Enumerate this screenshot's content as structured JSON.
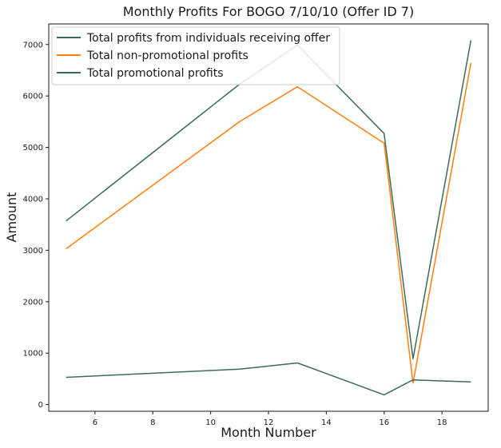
{
  "chart_data": {
    "type": "line",
    "title": "Monthly Profits For BOGO 7/10/10 (Offer ID 7)",
    "xlabel": "Month Number",
    "ylabel": "Amount",
    "xlim": [
      4.4,
      19.6
    ],
    "ylim": [
      -130,
      7400
    ],
    "x_ticks": [
      6,
      8,
      10,
      12,
      14,
      16,
      18
    ],
    "y_ticks": [
      0,
      1000,
      2000,
      3000,
      4000,
      5000,
      6000,
      7000
    ],
    "grid": false,
    "legend_position": "upper-left",
    "x": [
      5,
      11,
      13,
      16,
      17,
      19
    ],
    "series": [
      {
        "name": "Total profits from individuals receiving offer",
        "color": "#3d6b5a",
        "values": [
          3570,
          6230,
          6990,
          5270,
          890,
          7080
        ]
      },
      {
        "name": "Total non-promotional profits",
        "color": "#ff7f0e",
        "values": [
          3030,
          5500,
          6180,
          5080,
          420,
          6640
        ]
      },
      {
        "name": "Total promotional profits",
        "color": "#3d6b5a",
        "values": [
          530,
          690,
          810,
          190,
          480,
          440
        ]
      }
    ]
  }
}
